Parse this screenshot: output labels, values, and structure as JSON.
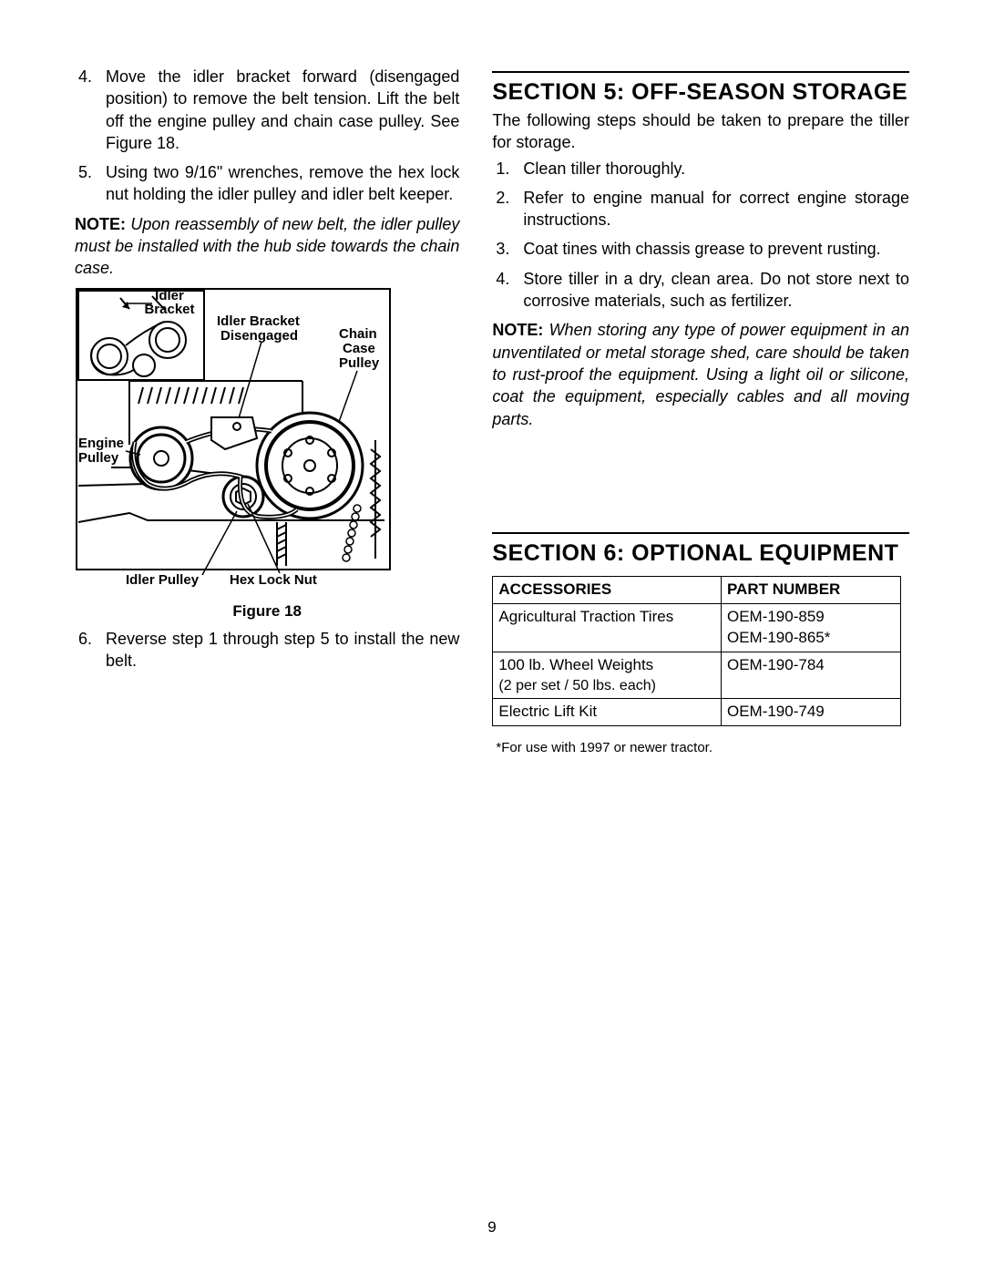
{
  "left": {
    "steps_a": [
      {
        "n": "4.",
        "t": "Move the idler bracket forward (disengaged position) to remove the belt tension. Lift the belt off the engine pulley and chain case pulley. See Figure 18."
      },
      {
        "n": "5.",
        "t": "Using two 9/16\" wrenches, remove the hex lock nut holding the idler pulley and idler belt keeper."
      }
    ],
    "note1_label": "NOTE:",
    "note1_body": "Upon reassembly of new belt, the idler pulley must be installed with the hub side towards the chain case.",
    "figure": {
      "labels": {
        "idler_bracket": "Idler\nBracket",
        "idler_bracket_disengaged": "Idler Bracket\nDisengaged",
        "chain_case_pulley": "Chain\nCase\nPulley",
        "engine_pulley": "Engine\nPulley",
        "idler_pulley": "Idler Pulley",
        "hex_lock_nut": "Hex Lock Nut"
      },
      "caption": "Figure 18"
    },
    "steps_b": [
      {
        "n": "6.",
        "t": "Reverse step 1 through step 5 to install the new belt."
      }
    ]
  },
  "right": {
    "section5_title": "SECTION 5:  OFF-SEASON STORAGE",
    "section5_intro": "The following steps should be taken to prepare the tiller for storage.",
    "section5_steps": [
      {
        "n": "1.",
        "t": "Clean tiller thoroughly."
      },
      {
        "n": "2.",
        "t": "Refer to engine manual for correct engine storage instructions."
      },
      {
        "n": "3.",
        "t": "Coat tines with chassis grease to prevent rusting."
      },
      {
        "n": "4.",
        "t": "Store tiller in a dry, clean area. Do not store next to corrosive materials, such as fertilizer."
      }
    ],
    "note2_label": "NOTE:",
    "note2_body": "When storing any type of power equipment in an unventilated or metal storage shed, care should be taken to rust-proof the equipment. Using a light oil or silicone, coat the equipment, especially cables and all moving parts.",
    "section6_title": "SECTION 6:  OPTIONAL EQUIPMENT",
    "table": {
      "head_acc": "ACCESSORIES",
      "head_pn": "PART NUMBER",
      "rows": [
        {
          "acc": "Agricultural Traction Tires",
          "sub": "",
          "pn": "OEM-190-859\nOEM-190-865*"
        },
        {
          "acc": "100 lb. Wheel Weights",
          "sub": "(2 per set / 50 lbs. each)",
          "pn": "OEM-190-784"
        },
        {
          "acc": "Electric Lift Kit",
          "sub": "",
          "pn": "OEM-190-749"
        }
      ]
    },
    "footnote": "*For use with 1997 or newer tractor."
  },
  "page_number": "9"
}
